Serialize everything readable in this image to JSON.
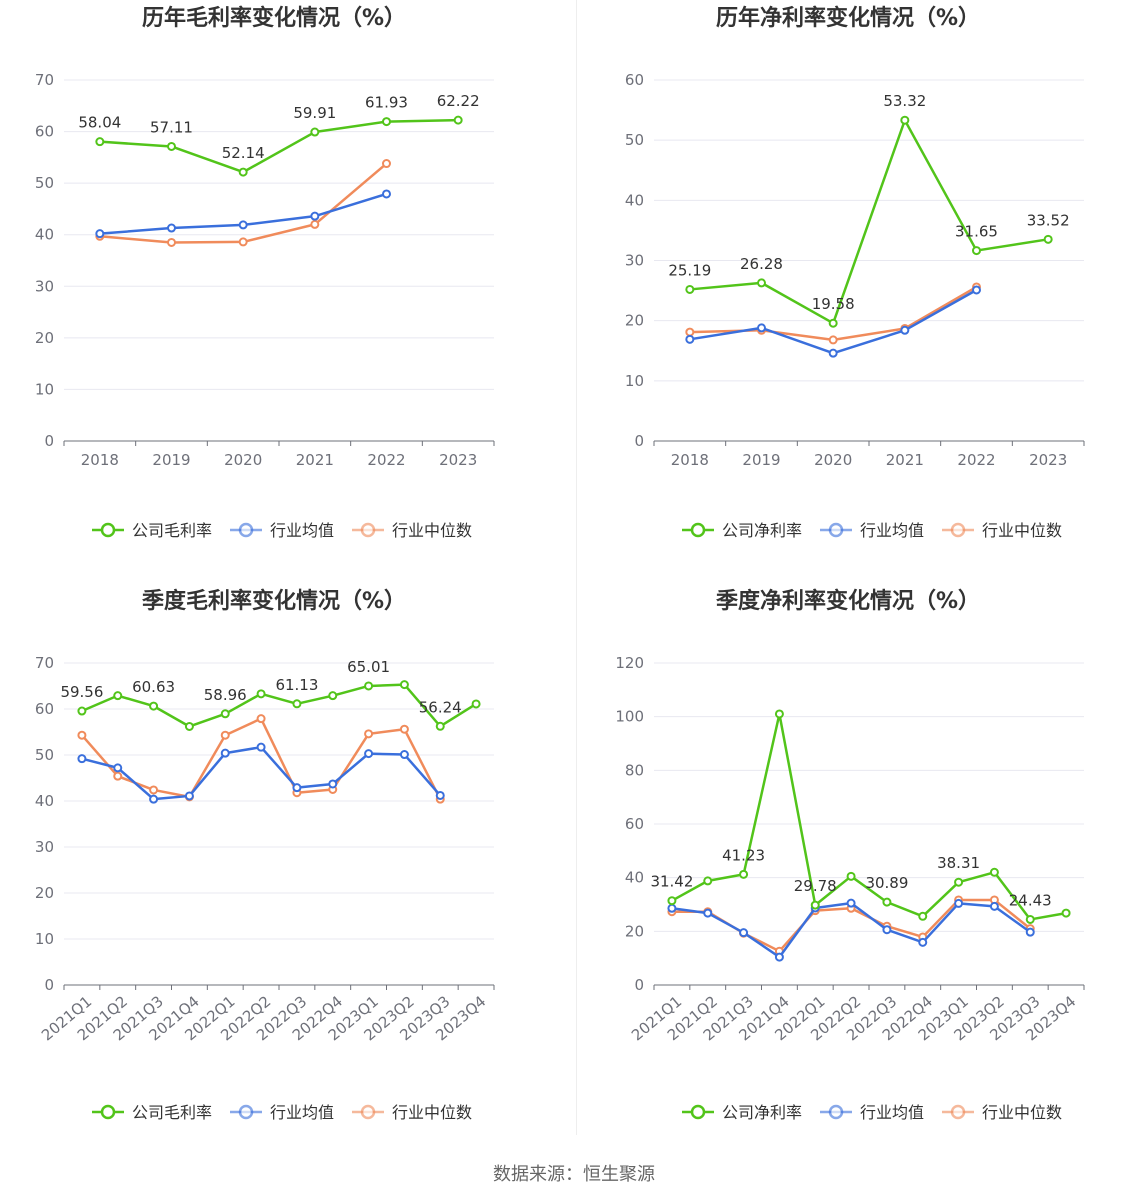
{
  "colors": {
    "company": "#52c41a",
    "avg": "#3a6fdc",
    "median": "#f08b5b",
    "grid": "#e8e8f0",
    "axis": "#6e7079"
  },
  "legend": {
    "company_gross": "公司毛利率",
    "company_net": "公司净利率",
    "avg": "行业均值",
    "median": "行业中位数"
  },
  "source": "数据来源：恒生聚源",
  "chart_data": [
    {
      "id": "annual-gross",
      "type": "line",
      "title": "历年毛利率变化情况（%）",
      "categories": [
        "2018",
        "2019",
        "2020",
        "2021",
        "2022",
        "2023"
      ],
      "ylim": [
        0,
        70
      ],
      "yticks": [
        0,
        10,
        20,
        30,
        40,
        50,
        60,
        70
      ],
      "legend_position": "bottom",
      "series": [
        {
          "name": "公司毛利率",
          "key": "company",
          "values": [
            58.04,
            57.11,
            52.14,
            59.91,
            61.93,
            62.22
          ],
          "labels": [
            0,
            1,
            2,
            3,
            4,
            5
          ]
        },
        {
          "name": "行业均值",
          "key": "avg",
          "values": [
            40.2,
            41.3,
            41.9,
            43.6,
            47.9,
            null
          ]
        },
        {
          "name": "行业中位数",
          "key": "median",
          "values": [
            39.7,
            38.5,
            38.6,
            42.0,
            53.8,
            null
          ]
        }
      ]
    },
    {
      "id": "annual-net",
      "type": "line",
      "title": "历年净利率变化情况（%）",
      "categories": [
        "2018",
        "2019",
        "2020",
        "2021",
        "2022",
        "2023"
      ],
      "ylim": [
        0,
        60
      ],
      "yticks": [
        0,
        10,
        20,
        30,
        40,
        50,
        60
      ],
      "legend_position": "bottom",
      "series": [
        {
          "name": "公司净利率",
          "key": "company",
          "values": [
            25.19,
            26.28,
            19.58,
            53.32,
            31.65,
            33.52
          ],
          "labels": [
            0,
            1,
            2,
            3,
            4,
            5
          ]
        },
        {
          "name": "行业均值",
          "key": "avg",
          "values": [
            16.9,
            18.8,
            14.6,
            18.4,
            25.1,
            null
          ]
        },
        {
          "name": "行业中位数",
          "key": "median",
          "values": [
            18.1,
            18.4,
            16.8,
            18.7,
            25.6,
            null
          ]
        }
      ]
    },
    {
      "id": "quarter-gross",
      "type": "line",
      "title": "季度毛利率变化情况（%）",
      "categories": [
        "2021Q1",
        "2021Q2",
        "2021Q3",
        "2021Q4",
        "2022Q1",
        "2022Q2",
        "2022Q3",
        "2022Q4",
        "2023Q1",
        "2023Q2",
        "2023Q3",
        "2023Q4"
      ],
      "ylim": [
        0,
        70
      ],
      "yticks": [
        0,
        10,
        20,
        30,
        40,
        50,
        60,
        70
      ],
      "legend_position": "bottom",
      "series": [
        {
          "name": "公司毛利率",
          "key": "company",
          "values": [
            59.56,
            62.9,
            60.63,
            56.2,
            58.96,
            63.3,
            61.13,
            62.9,
            65.01,
            65.3,
            56.24,
            61.1
          ],
          "labels": [
            0,
            2,
            4,
            6,
            8,
            10
          ]
        },
        {
          "name": "行业均值",
          "key": "avg",
          "values": [
            49.2,
            47.2,
            40.4,
            41.1,
            50.4,
            51.7,
            42.9,
            43.7,
            50.3,
            50.1,
            41.2,
            null
          ]
        },
        {
          "name": "行业中位数",
          "key": "median",
          "values": [
            54.3,
            45.4,
            42.4,
            40.9,
            54.3,
            57.9,
            41.8,
            42.5,
            54.6,
            55.6,
            40.4,
            null
          ]
        }
      ]
    },
    {
      "id": "quarter-net",
      "type": "line",
      "title": "季度净利率变化情况（%）",
      "categories": [
        "2021Q1",
        "2021Q2",
        "2021Q3",
        "2021Q4",
        "2022Q1",
        "2022Q2",
        "2022Q3",
        "2022Q4",
        "2023Q1",
        "2023Q2",
        "2023Q3",
        "2023Q4"
      ],
      "ylim": [
        0,
        120
      ],
      "yticks": [
        0,
        20,
        40,
        60,
        80,
        100,
        120
      ],
      "legend_position": "bottom",
      "series": [
        {
          "name": "公司净利率",
          "key": "company",
          "values": [
            31.42,
            38.8,
            41.23,
            101.0,
            29.78,
            40.5,
            30.89,
            25.6,
            38.31,
            42.0,
            24.43,
            26.8
          ],
          "labels": [
            0,
            2,
            4,
            6,
            8,
            10
          ]
        },
        {
          "name": "行业均值",
          "key": "avg",
          "values": [
            28.6,
            26.8,
            19.5,
            10.4,
            28.7,
            30.5,
            20.6,
            15.9,
            30.4,
            29.3,
            19.7,
            null
          ]
        },
        {
          "name": "行业中位数",
          "key": "median",
          "values": [
            27.3,
            27.3,
            19.3,
            12.6,
            27.7,
            28.6,
            21.9,
            17.9,
            31.7,
            31.7,
            21.0,
            null
          ]
        }
      ]
    }
  ]
}
